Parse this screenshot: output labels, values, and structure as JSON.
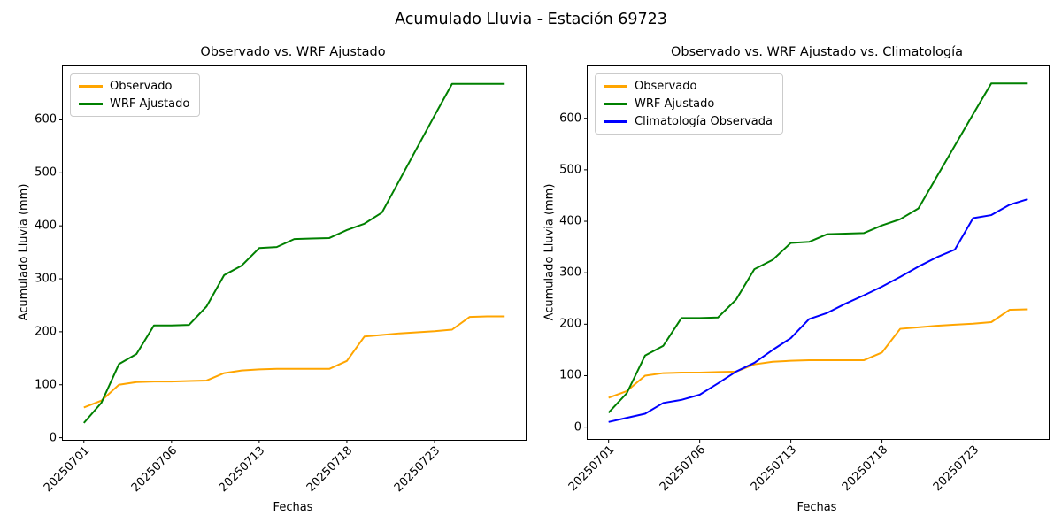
{
  "figure": {
    "title": "Acumulado Lluvia - Estación 69723"
  },
  "chart_data": [
    {
      "type": "line",
      "title": "Observado vs. WRF Ajustado",
      "xlabel": "Fechas",
      "ylabel": "Acumulado Lluvia (mm)",
      "x": [
        "20250701",
        "20250702",
        "20250703",
        "20250704",
        "20250705",
        "20250706",
        "20250707",
        "20250708",
        "20250709",
        "20250710",
        "20250713",
        "20250714",
        "20250715",
        "20250716",
        "20250717",
        "20250718",
        "20250719",
        "20250720",
        "20250721",
        "20250722",
        "20250723",
        "20250724",
        "20250725",
        "20250726",
        "20250727"
      ],
      "xtick_every": 5,
      "xtick_labels_shown": [
        "20250701",
        "20250706",
        "20250713",
        "20250718",
        "20250723"
      ],
      "yticks": [
        0,
        100,
        200,
        300,
        400,
        500,
        600
      ],
      "ylim": [
        -4,
        701
      ],
      "grid": false,
      "legend_position": "upper left",
      "series": [
        {
          "name": "Observado",
          "color": "#FFA500",
          "values": [
            57,
            70,
            100,
            105,
            106,
            106,
            107,
            108,
            122,
            127,
            129,
            130,
            130,
            130,
            130,
            145,
            191,
            194,
            197,
            199,
            201,
            204,
            228,
            229,
            229
          ]
        },
        {
          "name": "WRF Ajustado",
          "color": "#008000",
          "values": [
            28,
            66,
            139,
            158,
            212,
            212,
            213,
            248,
            307,
            325,
            358,
            360,
            375,
            376,
            377,
            392,
            404,
            425,
            486,
            547,
            608,
            668,
            668,
            668,
            668
          ]
        }
      ]
    },
    {
      "type": "line",
      "title": "Observado vs. WRF Ajustado vs. Climatología",
      "xlabel": "Fechas",
      "ylabel": "Acumulado Lluvia (mm)",
      "x": [
        "20250701",
        "20250702",
        "20250703",
        "20250704",
        "20250705",
        "20250706",
        "20250707",
        "20250708",
        "20250709",
        "20250710",
        "20250713",
        "20250714",
        "20250715",
        "20250716",
        "20250717",
        "20250718",
        "20250719",
        "20250720",
        "20250721",
        "20250722",
        "20250723",
        "20250724",
        "20250725",
        "20250726"
      ],
      "xtick_every": 5,
      "xtick_labels_shown": [
        "20250701",
        "20250706",
        "20250713",
        "20250718",
        "20250723"
      ],
      "yticks": [
        0,
        100,
        200,
        300,
        400,
        500,
        600
      ],
      "ylim": [
        -23,
        701
      ],
      "grid": false,
      "legend_position": "upper left",
      "series": [
        {
          "name": "Observado",
          "color": "#FFA500",
          "values": [
            57,
            70,
            100,
            105,
            106,
            106,
            107,
            108,
            122,
            127,
            129,
            130,
            130,
            130,
            130,
            145,
            191,
            194,
            197,
            199,
            201,
            204,
            228,
            229
          ]
        },
        {
          "name": "WRF Ajustado",
          "color": "#008000",
          "values": [
            28,
            66,
            139,
            158,
            212,
            212,
            213,
            248,
            307,
            325,
            358,
            360,
            375,
            376,
            377,
            392,
            404,
            425,
            486,
            547,
            608,
            668,
            668,
            668
          ]
        },
        {
          "name": "Climatología Observada",
          "color": "#0000FF",
          "values": [
            10,
            18,
            26,
            47,
            53,
            63,
            85,
            108,
            125,
            150,
            173,
            210,
            222,
            240,
            256,
            273,
            292,
            312,
            330,
            345,
            406,
            412,
            432,
            443
          ]
        }
      ]
    }
  ]
}
